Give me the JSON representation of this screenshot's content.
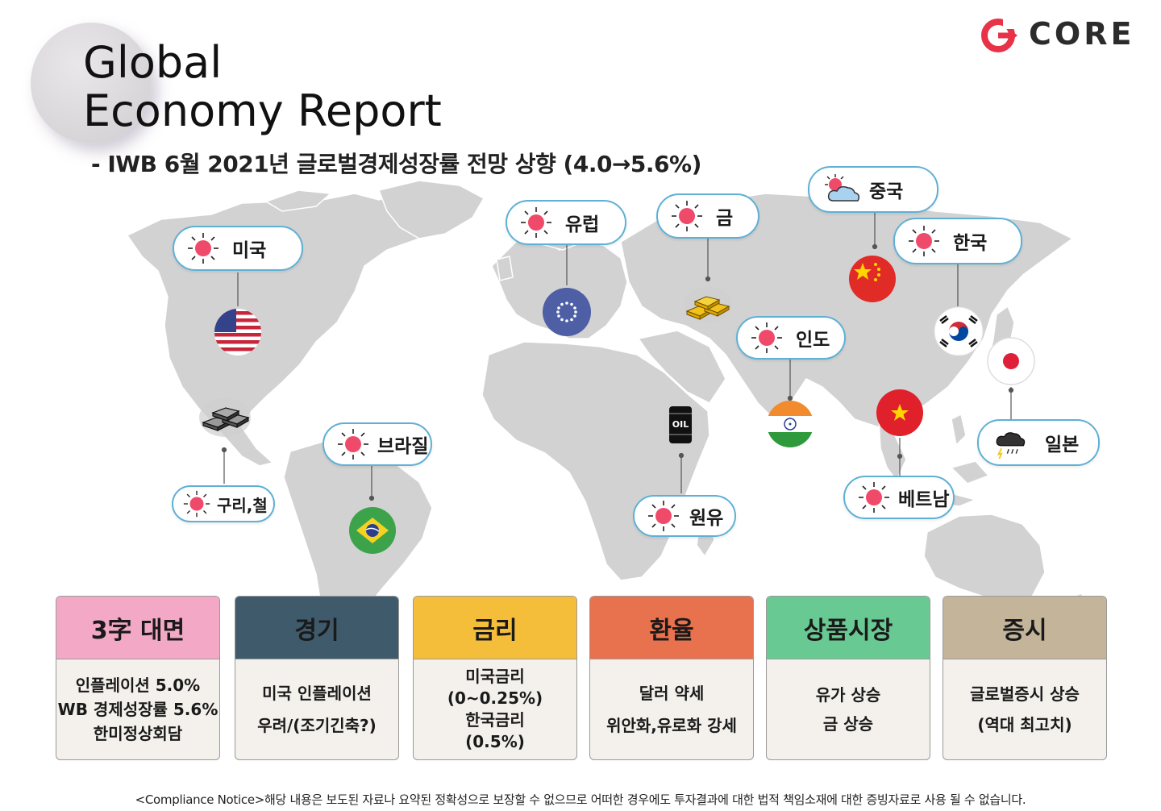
{
  "header": {
    "title_line1": "Global",
    "title_line2": "Economy Report",
    "subtitle": "- IWB 6월 2021년 글로벌경제성장률 전망 상향 (4.0→5.6%)"
  },
  "logo": {
    "text": "CORE",
    "accent_color": "#e83248"
  },
  "colors": {
    "sun": "#f04a6a",
    "bubble_border": "#5fb0d6",
    "map_land": "#d2d2d2",
    "card_3ja": "#f3a9c6",
    "card_economy": "#3e5a6b",
    "card_rate": "#f5be3a",
    "card_fx": "#e8714e",
    "card_commodity": "#69c992",
    "card_stock": "#c3b49a"
  },
  "markers": {
    "usa": {
      "label": "미국",
      "weather": "sunny"
    },
    "europe": {
      "label": "유럽",
      "weather": "sunny"
    },
    "gold": {
      "label": "금",
      "weather": "sunny"
    },
    "china": {
      "label": "중국",
      "weather": "partly-cloudy"
    },
    "korea": {
      "label": "한국",
      "weather": "sunny"
    },
    "india": {
      "label": "인도",
      "weather": "sunny"
    },
    "japan": {
      "label": "일본",
      "weather": "thunderstorm"
    },
    "vietnam": {
      "label": "베트남",
      "weather": "sunny"
    },
    "oil": {
      "label": "원유",
      "weather": "sunny",
      "barrel_text": "OIL"
    },
    "brazil": {
      "label": "브라질",
      "weather": "sunny"
    },
    "copper": {
      "label": "구리,철",
      "weather": "sunny"
    }
  },
  "cards": [
    {
      "title": "3字 대면",
      "lines": [
        "인플레이션 5.0%",
        "WB 경제성장률 5.6%",
        "한미정상회담"
      ]
    },
    {
      "title": "경기",
      "lines": [
        "미국 인플레이션",
        "우려/(조기긴축?)"
      ]
    },
    {
      "title": "금리",
      "lines": [
        "미국금리",
        "(0~0.25%)",
        "한국금리",
        "(0.5%)"
      ]
    },
    {
      "title": "환율",
      "lines": [
        "달러 약세",
        "위안화,유로화 강세"
      ]
    },
    {
      "title": "상품시장",
      "lines": [
        "유가  상승",
        "금 상승"
      ]
    },
    {
      "title": "증시",
      "lines": [
        "글로벌증시 상승",
        "(역대 최고치)"
      ]
    }
  ],
  "footer": {
    "notice": "<Compliance Notice>해당 내용은 보도된 자료나 요약된 정확성으로 보장할 수 없으므로 어떠한 경우에도 투자결과에 대한 법적 책임소재에 대한 증빙자료로 사용 될 수 없습니다."
  }
}
